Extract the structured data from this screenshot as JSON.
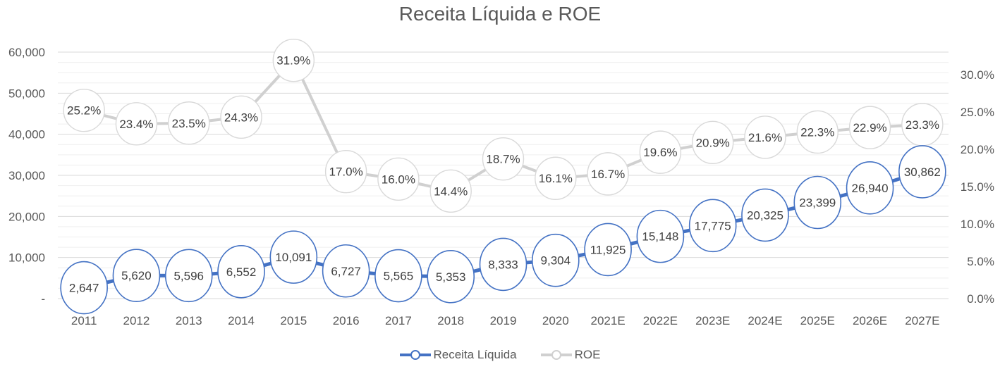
{
  "chart_data": {
    "type": "line",
    "title": "Receita Líquida e ROE",
    "categories": [
      "2011",
      "2012",
      "2013",
      "2014",
      "2015",
      "2016",
      "2017",
      "2018",
      "2019",
      "2020",
      "2021E",
      "2022E",
      "2023E",
      "2024E",
      "2025E",
      "2026E",
      "2027E"
    ],
    "y_left": {
      "ylim": [
        0,
        60000
      ],
      "ticks": [
        "-",
        "10,000",
        "20,000",
        "30,000",
        "40,000",
        "50,000",
        "60,000"
      ],
      "tick_values": [
        0,
        10000,
        20000,
        30000,
        40000,
        50000,
        60000
      ]
    },
    "y_right": {
      "ylim": [
        0,
        0.33
      ],
      "ticks": [
        "0.0%",
        "5.0%",
        "10.0%",
        "15.0%",
        "20.0%",
        "25.0%",
        "30.0%"
      ],
      "tick_values": [
        0,
        0.05,
        0.1,
        0.15,
        0.2,
        0.25,
        0.3
      ]
    },
    "series": [
      {
        "name": "Receita Líquida",
        "axis": "left",
        "color": "#4472C4",
        "values": [
          2647,
          5620,
          5596,
          6552,
          10091,
          6727,
          5565,
          5353,
          8333,
          9304,
          11925,
          15148,
          17775,
          20325,
          23399,
          26940,
          30862
        ],
        "labels": [
          "2,647",
          "5,620",
          "5,596",
          "6,552",
          "10,091",
          "6,727",
          "5,565",
          "5,353",
          "8,333",
          "9,304",
          "11,925",
          "15,148",
          "17,775",
          "20,325",
          "23,399",
          "26,940",
          "30,862"
        ]
      },
      {
        "name": "ROE",
        "axis": "right",
        "color": "#D0D0D0",
        "values": [
          0.252,
          0.234,
          0.235,
          0.243,
          0.319,
          0.17,
          0.16,
          0.144,
          0.187,
          0.161,
          0.167,
          0.196,
          0.209,
          0.216,
          0.223,
          0.229,
          0.233
        ],
        "labels": [
          "25.2%",
          "23.4%",
          "23.5%",
          "24.3%",
          "31.9%",
          "17.0%",
          "16.0%",
          "14.4%",
          "18.7%",
          "16.1%",
          "16.7%",
          "19.6%",
          "20.9%",
          "21.6%",
          "22.3%",
          "22.9%",
          "23.3%"
        ]
      }
    ],
    "grid": true,
    "legend_position": "bottom"
  }
}
